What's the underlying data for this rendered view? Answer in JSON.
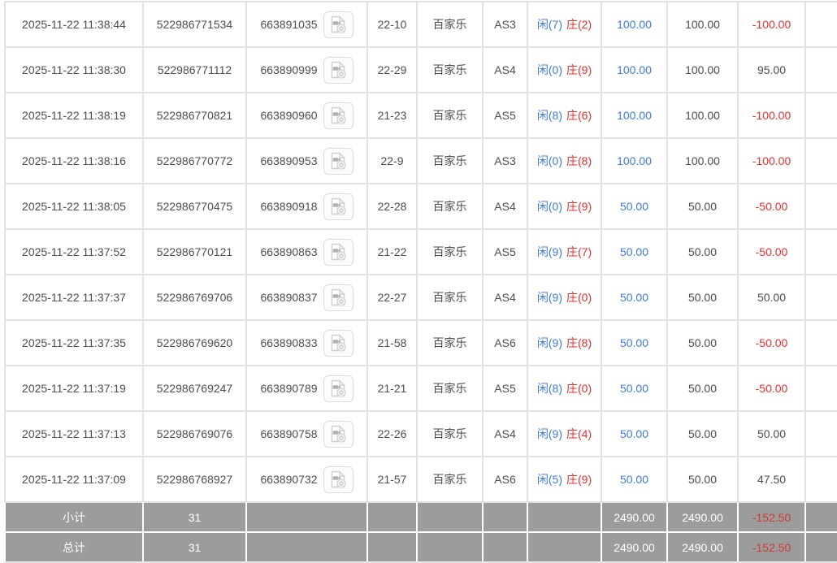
{
  "colors": {
    "accent_blue": "#3e7be0",
    "accent_red": "#ea2f2f",
    "footer_bg": "#9c9c9c",
    "footer_loss_red": "#cf3a31",
    "border_gray": "#e2e2e2"
  },
  "icons": {
    "video_replay": "video-file-icon"
  },
  "table": {
    "rows": [
      {
        "time": "2025-11-22 11:38:44",
        "order_no": "522986771534",
        "game_no": "663891035",
        "table_no": "22-10",
        "game_type": "百家乐",
        "play_type": "AS3",
        "result_player": "闲(7)",
        "result_banker": "庄(2)",
        "bet_amount": "100.00",
        "valid_amount": "100.00",
        "win_loss": "-100.00"
      },
      {
        "time": "2025-11-22 11:38:30",
        "order_no": "522986771112",
        "game_no": "663890999",
        "table_no": "22-29",
        "game_type": "百家乐",
        "play_type": "AS4",
        "result_player": "闲(0)",
        "result_banker": "庄(9)",
        "bet_amount": "100.00",
        "valid_amount": "100.00",
        "win_loss": "95.00"
      },
      {
        "time": "2025-11-22 11:38:19",
        "order_no": "522986770821",
        "game_no": "663890960",
        "table_no": "21-23",
        "game_type": "百家乐",
        "play_type": "AS5",
        "result_player": "闲(8)",
        "result_banker": "庄(6)",
        "bet_amount": "100.00",
        "valid_amount": "100.00",
        "win_loss": "-100.00"
      },
      {
        "time": "2025-11-22 11:38:16",
        "order_no": "522986770772",
        "game_no": "663890953",
        "table_no": "22-9",
        "game_type": "百家乐",
        "play_type": "AS3",
        "result_player": "闲(0)",
        "result_banker": "庄(8)",
        "bet_amount": "100.00",
        "valid_amount": "100.00",
        "win_loss": "-100.00"
      },
      {
        "time": "2025-11-22 11:38:05",
        "order_no": "522986770475",
        "game_no": "663890918",
        "table_no": "22-28",
        "game_type": "百家乐",
        "play_type": "AS4",
        "result_player": "闲(0)",
        "result_banker": "庄(9)",
        "bet_amount": "50.00",
        "valid_amount": "50.00",
        "win_loss": "-50.00"
      },
      {
        "time": "2025-11-22 11:37:52",
        "order_no": "522986770121",
        "game_no": "663890863",
        "table_no": "21-22",
        "game_type": "百家乐",
        "play_type": "AS5",
        "result_player": "闲(9)",
        "result_banker": "庄(7)",
        "bet_amount": "50.00",
        "valid_amount": "50.00",
        "win_loss": "-50.00"
      },
      {
        "time": "2025-11-22 11:37:37",
        "order_no": "522986769706",
        "game_no": "663890837",
        "table_no": "22-27",
        "game_type": "百家乐",
        "play_type": "AS4",
        "result_player": "闲(9)",
        "result_banker": "庄(0)",
        "bet_amount": "50.00",
        "valid_amount": "50.00",
        "win_loss": "50.00"
      },
      {
        "time": "2025-11-22 11:37:35",
        "order_no": "522986769620",
        "game_no": "663890833",
        "table_no": "21-58",
        "game_type": "百家乐",
        "play_type": "AS6",
        "result_player": "闲(9)",
        "result_banker": "庄(8)",
        "bet_amount": "50.00",
        "valid_amount": "50.00",
        "win_loss": "-50.00"
      },
      {
        "time": "2025-11-22 11:37:19",
        "order_no": "522986769247",
        "game_no": "663890789",
        "table_no": "21-21",
        "game_type": "百家乐",
        "play_type": "AS5",
        "result_player": "闲(8)",
        "result_banker": "庄(0)",
        "bet_amount": "50.00",
        "valid_amount": "50.00",
        "win_loss": "-50.00"
      },
      {
        "time": "2025-11-22 11:37:13",
        "order_no": "522986769076",
        "game_no": "663890758",
        "table_no": "22-26",
        "game_type": "百家乐",
        "play_type": "AS4",
        "result_player": "闲(9)",
        "result_banker": "庄(4)",
        "bet_amount": "50.00",
        "valid_amount": "50.00",
        "win_loss": "50.00"
      },
      {
        "time": "2025-11-22 11:37:09",
        "order_no": "522986768927",
        "game_no": "663890732",
        "table_no": "21-57",
        "game_type": "百家乐",
        "play_type": "AS6",
        "result_player": "闲(5)",
        "result_banker": "庄(9)",
        "bet_amount": "50.00",
        "valid_amount": "50.00",
        "win_loss": "47.50"
      }
    ],
    "footer": [
      {
        "label": "小计",
        "count": "31",
        "bet_amount": "2490.00",
        "valid_amount": "2490.00",
        "win_loss": "-152.50"
      },
      {
        "label": "总计",
        "count": "31",
        "bet_amount": "2490.00",
        "valid_amount": "2490.00",
        "win_loss": "-152.50"
      }
    ]
  }
}
